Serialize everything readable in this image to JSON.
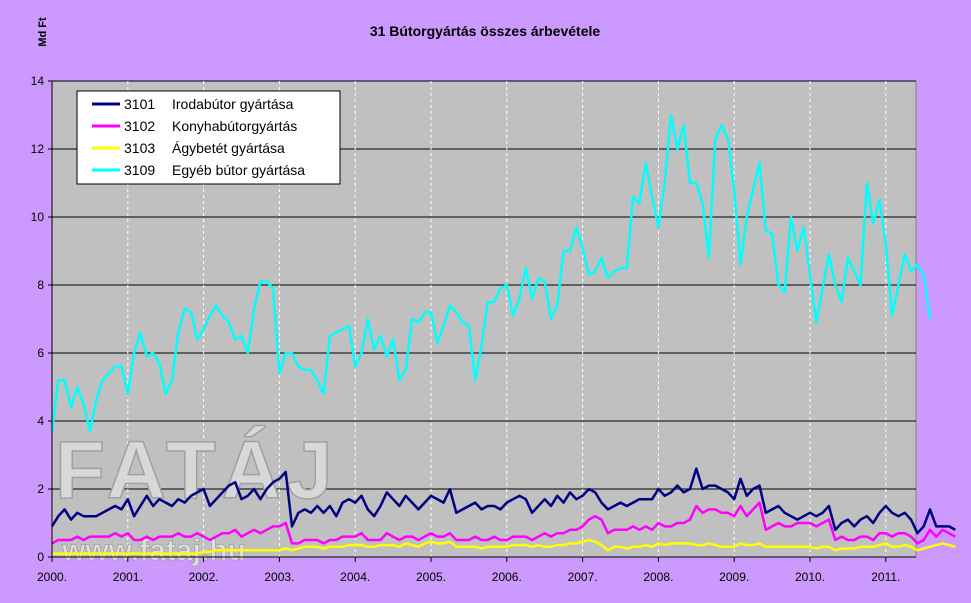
{
  "chart_data": {
    "type": "line",
    "title": "31 Bútorgyártás összes árbevétele",
    "ylabel": "Md Ft",
    "xlabel": "",
    "ylim": [
      0,
      14
    ],
    "yticks": [
      0,
      2,
      4,
      6,
      8,
      10,
      12,
      14
    ],
    "x_ticks": [
      "2000.",
      "2001.",
      "2002.",
      "2003.",
      "2004.",
      "2005.",
      "2006.",
      "2007.",
      "2008.",
      "2009.",
      "2010.",
      "2011."
    ],
    "x_start": 2000.0,
    "x_step_months": 1,
    "grid": true,
    "legend_position": "top-left",
    "series": [
      {
        "code": "3101",
        "name": "Irodabútor gyártása",
        "color": "#000080",
        "values": [
          0.9,
          1.2,
          1.4,
          1.1,
          1.3,
          1.2,
          1.2,
          1.2,
          1.3,
          1.4,
          1.5,
          1.4,
          1.7,
          1.2,
          1.5,
          1.8,
          1.5,
          1.7,
          1.6,
          1.5,
          1.7,
          1.6,
          1.8,
          1.9,
          2.0,
          1.5,
          1.7,
          1.9,
          2.1,
          2.2,
          1.7,
          1.8,
          2.0,
          1.7,
          2.0,
          2.2,
          2.3,
          2.5,
          0.9,
          1.3,
          1.4,
          1.3,
          1.5,
          1.3,
          1.5,
          1.2,
          1.6,
          1.7,
          1.6,
          1.8,
          1.4,
          1.2,
          1.5,
          1.9,
          1.7,
          1.5,
          1.8,
          1.6,
          1.4,
          1.6,
          1.8,
          1.7,
          1.6,
          2.0,
          1.3,
          1.4,
          1.5,
          1.6,
          1.4,
          1.5,
          1.5,
          1.4,
          1.6,
          1.7,
          1.8,
          1.7,
          1.3,
          1.5,
          1.7,
          1.5,
          1.8,
          1.6,
          1.9,
          1.7,
          1.8,
          2.0,
          1.9,
          1.6,
          1.4,
          1.5,
          1.6,
          1.5,
          1.6,
          1.7,
          1.7,
          1.7,
          2.0,
          1.8,
          1.9,
          2.1,
          1.9,
          2.0,
          2.6,
          2.0,
          2.1,
          2.1,
          2.0,
          1.9,
          1.7,
          2.3,
          1.8,
          2.0,
          2.1,
          1.3,
          1.4,
          1.5,
          1.3,
          1.2,
          1.1,
          1.2,
          1.3,
          1.2,
          1.3,
          1.5,
          0.8,
          1.0,
          1.1,
          0.9,
          1.1,
          1.2,
          1.0,
          1.3,
          1.5,
          1.3,
          1.2,
          1.3,
          1.1,
          0.7,
          0.9,
          1.4,
          0.9,
          0.9,
          0.9,
          0.8
        ]
      },
      {
        "code": "3102",
        "name": "Konyhabútorgyártás",
        "color": "#ff00ff",
        "values": [
          0.4,
          0.5,
          0.5,
          0.5,
          0.6,
          0.5,
          0.6,
          0.6,
          0.6,
          0.6,
          0.7,
          0.6,
          0.7,
          0.5,
          0.5,
          0.6,
          0.5,
          0.6,
          0.6,
          0.6,
          0.7,
          0.6,
          0.6,
          0.7,
          0.6,
          0.5,
          0.6,
          0.7,
          0.7,
          0.8,
          0.6,
          0.7,
          0.8,
          0.7,
          0.8,
          0.9,
          0.9,
          1.0,
          0.4,
          0.4,
          0.5,
          0.5,
          0.5,
          0.4,
          0.5,
          0.5,
          0.6,
          0.6,
          0.6,
          0.7,
          0.5,
          0.5,
          0.5,
          0.7,
          0.6,
          0.5,
          0.6,
          0.6,
          0.5,
          0.6,
          0.7,
          0.6,
          0.6,
          0.7,
          0.5,
          0.5,
          0.5,
          0.6,
          0.5,
          0.5,
          0.6,
          0.5,
          0.5,
          0.6,
          0.6,
          0.6,
          0.5,
          0.6,
          0.7,
          0.6,
          0.7,
          0.7,
          0.8,
          0.8,
          0.9,
          1.1,
          1.2,
          1.1,
          0.7,
          0.8,
          0.8,
          0.8,
          0.9,
          0.8,
          0.9,
          0.8,
          1.0,
          0.9,
          0.9,
          1.0,
          1.0,
          1.1,
          1.5,
          1.3,
          1.4,
          1.4,
          1.3,
          1.3,
          1.2,
          1.5,
          1.2,
          1.4,
          1.6,
          0.8,
          0.9,
          1.0,
          0.9,
          0.9,
          1.0,
          1.0,
          1.0,
          0.9,
          1.0,
          1.1,
          0.5,
          0.6,
          0.5,
          0.5,
          0.6,
          0.6,
          0.5,
          0.7,
          0.7,
          0.6,
          0.7,
          0.7,
          0.6,
          0.4,
          0.5,
          0.8,
          0.6,
          0.8,
          0.7,
          0.6
        ]
      },
      {
        "code": "3103",
        "name": "Ágybetét gyártása",
        "color": "#ffff00",
        "values": [
          0.1,
          0.1,
          0.1,
          0.1,
          0.1,
          0.1,
          0.1,
          0.1,
          0.1,
          0.1,
          0.1,
          0.1,
          0.1,
          0.1,
          0.1,
          0.1,
          0.1,
          0.1,
          0.1,
          0.1,
          0.1,
          0.1,
          0.1,
          0.1,
          0.15,
          0.15,
          0.2,
          0.2,
          0.2,
          0.2,
          0.2,
          0.2,
          0.2,
          0.2,
          0.2,
          0.2,
          0.2,
          0.25,
          0.2,
          0.25,
          0.3,
          0.3,
          0.3,
          0.25,
          0.3,
          0.3,
          0.3,
          0.35,
          0.35,
          0.35,
          0.3,
          0.3,
          0.35,
          0.35,
          0.35,
          0.3,
          0.4,
          0.35,
          0.3,
          0.4,
          0.45,
          0.4,
          0.4,
          0.45,
          0.3,
          0.3,
          0.3,
          0.3,
          0.25,
          0.3,
          0.3,
          0.3,
          0.3,
          0.35,
          0.35,
          0.35,
          0.3,
          0.35,
          0.3,
          0.3,
          0.35,
          0.35,
          0.4,
          0.4,
          0.45,
          0.5,
          0.45,
          0.35,
          0.2,
          0.3,
          0.3,
          0.25,
          0.3,
          0.3,
          0.35,
          0.3,
          0.4,
          0.35,
          0.4,
          0.4,
          0.4,
          0.4,
          0.35,
          0.35,
          0.4,
          0.35,
          0.3,
          0.3,
          0.3,
          0.4,
          0.35,
          0.35,
          0.4,
          0.3,
          0.3,
          0.3,
          0.3,
          0.3,
          0.3,
          0.3,
          0.3,
          0.25,
          0.3,
          0.3,
          0.2,
          0.25,
          0.25,
          0.25,
          0.3,
          0.3,
          0.3,
          0.35,
          0.4,
          0.3,
          0.3,
          0.35,
          0.3,
          0.2,
          0.25,
          0.3,
          0.35,
          0.4,
          0.35,
          0.3
        ]
      },
      {
        "code": "3109",
        "name": "Egyéb bútor gyártása",
        "color": "#00ffff",
        "values": [
          3.7,
          5.2,
          5.2,
          4.4,
          5.0,
          4.5,
          3.7,
          4.6,
          5.2,
          5.4,
          5.6,
          5.6,
          4.8,
          6.0,
          6.6,
          5.9,
          6.0,
          5.7,
          4.8,
          5.2,
          6.6,
          7.3,
          7.2,
          6.4,
          6.7,
          7.1,
          7.4,
          7.1,
          6.9,
          6.4,
          6.5,
          6.0,
          7.3,
          8.1,
          8.1,
          7.9,
          5.4,
          6.0,
          6.0,
          5.6,
          5.5,
          5.5,
          5.2,
          4.8,
          6.5,
          6.6,
          6.7,
          6.8,
          5.6,
          6.0,
          7.0,
          6.1,
          6.5,
          5.9,
          6.4,
          5.2,
          5.5,
          7.0,
          6.9,
          7.2,
          7.2,
          6.3,
          6.8,
          7.4,
          7.2,
          6.9,
          6.8,
          5.2,
          6.2,
          7.5,
          7.5,
          7.9,
          8.0,
          7.1,
          7.6,
          8.5,
          7.6,
          8.2,
          8.1,
          7.0,
          7.4,
          9.0,
          9.0,
          9.7,
          9.1,
          8.3,
          8.4,
          8.8,
          8.2,
          8.4,
          8.5,
          8.5,
          10.6,
          10.4,
          11.6,
          10.6,
          9.7,
          11.0,
          13.0,
          12.0,
          12.7,
          11.0,
          11.0,
          10.4,
          8.8,
          12.3,
          12.7,
          12.3,
          10.8,
          8.6,
          10.0,
          10.8,
          11.6,
          9.6,
          9.5,
          8.0,
          7.8,
          10.0,
          9.0,
          9.7,
          8.3,
          6.9,
          7.9,
          8.9,
          8.0,
          7.5,
          8.8,
          8.4,
          8.0,
          11.0,
          9.8,
          10.5,
          9.2,
          7.1,
          8.0,
          8.9,
          8.4,
          8.6,
          8.3,
          7.0
        ]
      }
    ]
  },
  "watermark": {
    "text": "FATÁJ",
    "url": "www.fataj.hu"
  }
}
